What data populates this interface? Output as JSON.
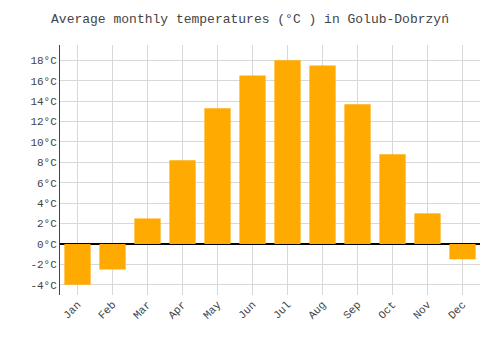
{
  "chart_data": {
    "type": "bar",
    "title": "Average monthly temperatures (°C ) in Golub-Dobrzyń",
    "categories": [
      "Jan",
      "Feb",
      "Mar",
      "Apr",
      "May",
      "Jun",
      "Jul",
      "Aug",
      "Sep",
      "Oct",
      "Nov",
      "Dec"
    ],
    "values": [
      -4.0,
      -2.5,
      2.5,
      8.2,
      13.3,
      16.5,
      18.0,
      17.5,
      13.7,
      8.8,
      3.0,
      -1.5
    ],
    "color": "#FFAA00",
    "ylim": [
      -5,
      19.5
    ],
    "yticks": [
      {
        "value": -4,
        "label": "-4°C"
      },
      {
        "value": -2,
        "label": "-2°C"
      },
      {
        "value": 0,
        "label": "0°C"
      },
      {
        "value": 2,
        "label": "2°C"
      },
      {
        "value": 4,
        "label": "4°C"
      },
      {
        "value": 6,
        "label": "6°C"
      },
      {
        "value": 8,
        "label": "8°C"
      },
      {
        "value": 10,
        "label": "10°C"
      },
      {
        "value": 12,
        "label": "12°C"
      },
      {
        "value": 14,
        "label": "14°C"
      },
      {
        "value": 16,
        "label": "16°C"
      },
      {
        "value": 18,
        "label": "18°C"
      }
    ],
    "grid": true
  }
}
